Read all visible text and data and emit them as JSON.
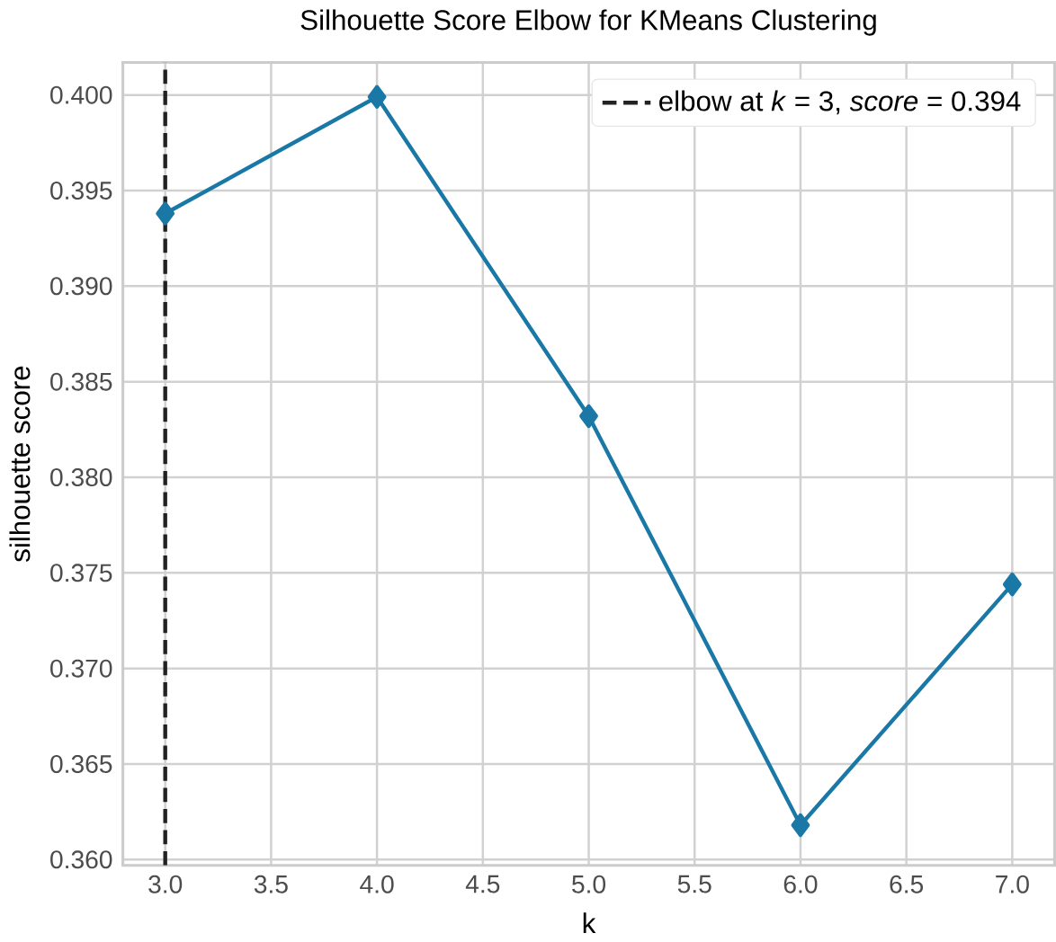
{
  "chart_data": {
    "type": "line",
    "title": "Silhouette Score Elbow for KMeans Clustering",
    "xlabel": "k",
    "ylabel": "silhouette score",
    "x": [
      3,
      4,
      5,
      6,
      7
    ],
    "series": [
      {
        "color": "#1a78a6",
        "values": [
          0.3938,
          0.3999,
          0.3832,
          0.3618,
          0.3744
        ]
      }
    ],
    "xlim": [
      2.8,
      7.2
    ],
    "xticks": [
      {
        "value": 3,
        "label": "3.0"
      },
      {
        "value": 3.5,
        "label": "3.5"
      },
      {
        "value": 4,
        "label": "4.0"
      },
      {
        "value": 4.5,
        "label": "4.5"
      },
      {
        "value": 5,
        "label": "5.0"
      },
      {
        "value": 5.5,
        "label": "5.5"
      },
      {
        "value": 6,
        "label": "6.0"
      },
      {
        "value": 6.5,
        "label": "6.5"
      },
      {
        "value": 7,
        "label": "7.0"
      }
    ],
    "ylim": [
      0.3597,
      0.4017
    ],
    "yticks": [
      {
        "value": 0.36,
        "label": "0.360"
      },
      0.365,
      {
        "value": 0.37,
        "label": "0.370"
      },
      0.375,
      {
        "value": 0.38,
        "label": "0.380"
      },
      0.385,
      {
        "value": 0.39,
        "label": "0.390"
      },
      0.395,
      {
        "value": 0.4,
        "label": "0.400"
      }
    ],
    "ref_lines": [
      {
        "axis": "x",
        "value": 3,
        "label": "elbow at *k* = 3, *score* = 0.394",
        "color": "#222222",
        "line_style": "dashed"
      }
    ],
    "grid": true,
    "legend": "top right",
    "marker": "diamond",
    "line_style": "solid"
  }
}
